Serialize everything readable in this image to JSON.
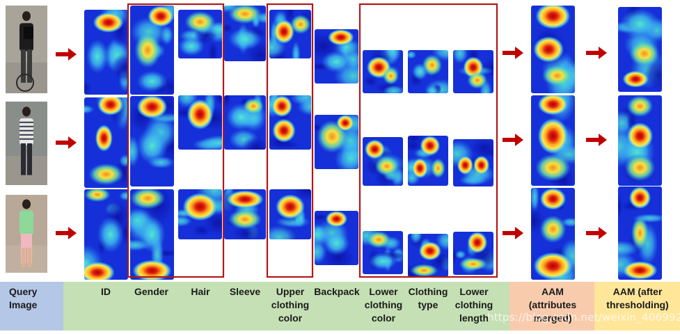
{
  "labels": {
    "query_image": "Query Image",
    "id": "ID",
    "gender": "Gender",
    "hair": "Hair",
    "sleeve": "Sleeve",
    "upper_clothing_color": "Upper clothing color",
    "backpack": "Backpack",
    "lower_clothing_color": "Lower clothing color",
    "clothing_type": "Clothing type",
    "lower_clothing_length": "Lower clothing length",
    "aam_merged": "AAM (attributes merged)",
    "aam_thresholded": "AAM (after thresholding)"
  },
  "watermark": "https://blog.csdn.net/weixin_40699243",
  "colors": {
    "query_band": "#b4c7e7",
    "attributes_band": "#c5e0b4",
    "aam_merged_band": "#f8cbad",
    "aam_thresholded_band": "#ffe699",
    "group_box": "#b01818",
    "arrow": "#c00000",
    "heat_base": "#1530d8",
    "heat_mid": "#30b8f0",
    "heat_warm": "#ffe040",
    "heat_hot": "#d81010"
  },
  "rows": [
    {
      "name": "query-person-backpack-bicycle",
      "shirt": "#1c1c1c",
      "pants": "#3a3a3a",
      "skin": "#c89878"
    },
    {
      "name": "query-person-striped-shirt",
      "shirt": "#e8e8e8",
      "pants": "#2a2a32",
      "skin": "#b88868"
    },
    {
      "name": "query-person-girl-green-top",
      "shirt": "#8ed89a",
      "pants": "#f0b8c0",
      "skin": "#e0b090"
    }
  ]
}
